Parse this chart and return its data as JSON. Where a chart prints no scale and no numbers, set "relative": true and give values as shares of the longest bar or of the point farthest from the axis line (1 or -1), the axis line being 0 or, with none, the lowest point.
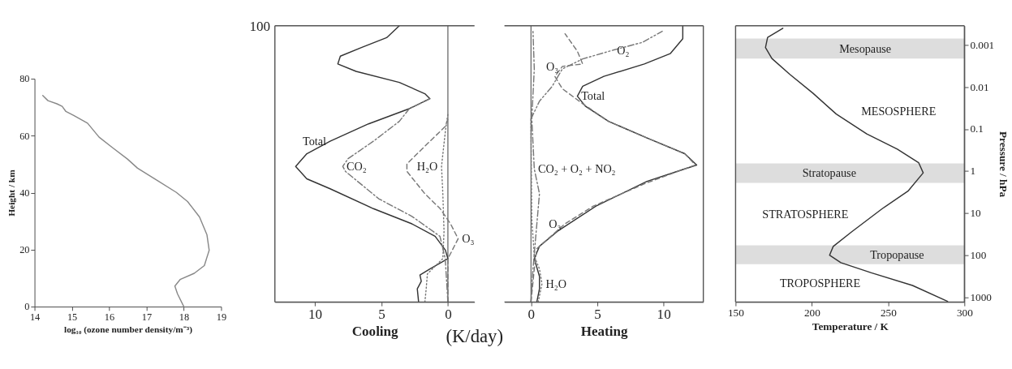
{
  "chart_data": [
    {
      "type": "line",
      "xlabel": "log₁₀ (ozone number density/m⁻³)",
      "ylabel": "Height / km",
      "xlim": [
        14,
        19
      ],
      "xticks": [
        14,
        15,
        16,
        17,
        18,
        19
      ],
      "ylim": [
        0,
        80
      ],
      "yticks": [
        0,
        20,
        40,
        60,
        80
      ],
      "series": [
        {
          "color": "#888888",
          "line_style": "solid",
          "values": [
            0,
            4.5,
            7.2,
            9.5,
            11.7,
            14.4,
            19.8,
            25.2,
            31.5,
            36.9,
            40.1,
            44.1,
            48.6,
            51.8,
            55.9,
            59.5,
            64.4,
            67.1,
            68.5,
            70.3,
            71.2,
            72.3,
            74.1
          ],
          "x": [
            18.0,
            17.83,
            17.76,
            17.9,
            18.28,
            18.55,
            18.68,
            18.62,
            18.42,
            18.1,
            17.8,
            17.31,
            16.76,
            16.49,
            16.08,
            15.73,
            15.42,
            15.05,
            14.84,
            14.74,
            14.6,
            14.36,
            14.22
          ]
        }
      ]
    },
    {
      "type": "line",
      "relative": true,
      "xlabel": "Cooling",
      "xlim": [
        13,
        -2
      ],
      "xticks": [
        10,
        5,
        0
      ],
      "ref_lines": [
        {
          "axis": "x",
          "value": 0,
          "color": "#555555"
        }
      ],
      "series": [
        {
          "color": "#333333",
          "line_style": "solid",
          "values": [
            0,
            0.048,
            0.075,
            0.098,
            0.12,
            0.157,
            0.188,
            0.238,
            0.283,
            0.338,
            0.41,
            0.446,
            0.491,
            0.537,
            0.582,
            0.645,
            0.7,
            0.736,
            0.754,
            0.795,
            0.835,
            0.862,
            0.89,
            0.921,
            0.957,
            1.0
          ],
          "x": [
            2.2,
            2.3,
            2.0,
            2.1,
            1.35,
            0,
            0.19,
            0.96,
            2.7,
            5.6,
            8.85,
            10.6,
            11.44,
            10.6,
            8.85,
            5.96,
            2.9,
            1.35,
            1.73,
            3.65,
            6.9,
            8.27,
            8.08,
            6.5,
            4.6,
            3.65
          ]
        },
        {
          "color": "#777777",
          "line_style": "dashdot",
          "values": [
            0,
            0.157,
            0.238,
            0.31,
            0.374,
            0.473,
            0.491,
            0.519,
            0.582,
            0.654,
            0.7,
            0.736
          ],
          "x": [
            0,
            0.2,
            0.6,
            2.7,
            5.2,
            7.7,
            7.9,
            7.5,
            5.6,
            3.65,
            2.9,
            1.35
          ]
        },
        {
          "color": "#777777",
          "line_style": "dashed",
          "values": [
            0,
            0.157,
            0.229,
            0.283,
            0.338,
            0.392,
            0.473,
            0.5,
            0.564,
            0.636,
            0.663
          ],
          "x": [
            0,
            0,
            -0.77,
            -0.2,
            0.58,
            1.73,
            3.08,
            3.08,
            1.73,
            0.19,
            0
          ]
        },
        {
          "color": "#777777",
          "line_style": "dotted",
          "values": [
            0,
            0.048,
            0.102,
            0.157,
            0.256,
            0.392,
            0.491,
            0.618,
            0.681
          ],
          "x": [
            1.73,
            1.63,
            1.54,
            0.38,
            0.29,
            0.38,
            0.48,
            0.19,
            0
          ]
        }
      ],
      "annotations": [
        {
          "text": "Total",
          "x": 8.85,
          "y": 0.582
        },
        {
          "text": "CO₂",
          "x": 7.9,
          "y": 0.491
        },
        {
          "text": "H₂O",
          "x": 0.48,
          "y": 0.491
        },
        {
          "text": "O₃",
          "x": -0.77,
          "y": 0.229
        },
        "100",
        "(K/day)"
      ]
    },
    {
      "type": "line",
      "relative": true,
      "xlabel": "Heating",
      "xlim": [
        -2,
        13
      ],
      "xticks": [
        0,
        5,
        10
      ],
      "ref_lines": [
        {
          "axis": "x",
          "value": 0,
          "color": "#555555"
        }
      ],
      "series": [
        {
          "color": "#333333",
          "line_style": "solid",
          "values": [
            0,
            0.048,
            0.093,
            0.157,
            0.202,
            0.256,
            0.347,
            0.437,
            0.482,
            0.496,
            0.537,
            0.591,
            0.654,
            0.709,
            0.745,
            0.781,
            0.817,
            0.862,
            0.899,
            0.953,
            1.0
          ],
          "x": [
            0.44,
            0.64,
            0.64,
            0.25,
            0.64,
            2.0,
            4.9,
            8.75,
            11.6,
            12.5,
            11.6,
            8.9,
            5.85,
            4.1,
            3.5,
            3.9,
            5.5,
            8.55,
            10.5,
            11.45,
            11.45
          ]
        },
        {
          "color": "#777777",
          "line_style": "dashed",
          "values": [
            0,
            0.12,
            0.193,
            0.283,
            0.347,
            0.428,
            0.482,
            0.496,
            0.537,
            0.591,
            0.654,
            0.718,
            0.772,
            0.817,
            0.853,
            0.862,
            0.908,
            0.971
          ],
          "x": [
            0,
            0.25,
            0.44,
            2.57,
            4.7,
            8.55,
            11.6,
            12.4,
            11.6,
            8.9,
            5.85,
            3.9,
            2.37,
            1.8,
            2.37,
            3.9,
            3.5,
            2.57
          ]
        },
        {
          "color": "#777777",
          "line_style": "dashdotdot",
          "values": [
            0.663,
            0.727,
            0.781,
            0.844,
            0.88,
            0.912,
            0.94,
            0.98
          ],
          "x": [
            0,
            0.64,
            1.6,
            2.37,
            3.9,
            6.2,
            8.4,
            9.9
          ]
        },
        {
          "color": "#777777",
          "line_style": "dashdot",
          "values": [
            0,
            0.12,
            0.392,
            0.482,
            0.663,
            0.844,
            0.98
          ],
          "x": [
            0,
            0.15,
            0.64,
            0.25,
            0.06,
            0.25,
            0.15
          ]
        },
        {
          "color": "#777777",
          "line_style": "dotted",
          "values": [
            0,
            0.066,
            0.12,
            0.166,
            0.3,
            0.66
          ],
          "x": [
            0.54,
            0.83,
            0.64,
            0.25,
            0.06,
            0
          ]
        }
      ],
      "annotations": [
        {
          "text": "O₃",
          "x": 2.37,
          "y": 0.853
        },
        {
          "text": "O₂",
          "x": 6.2,
          "y": 0.912
        },
        {
          "text": "Total",
          "x": 3.5,
          "y": 0.745
        },
        {
          "text": "CO₂ + O₂ + NO₂",
          "x": 0.25,
          "y": 0.482
        },
        {
          "text": "O₃",
          "x": 2.57,
          "y": 0.283
        },
        {
          "text": "H₂O",
          "x": 0.83,
          "y": 0.066
        }
      ]
    },
    {
      "type": "line",
      "xlabel": "Temperature / K",
      "ylabel": "Pressure / hPa",
      "log": true,
      "xlim": [
        150,
        300
      ],
      "xticks": [
        150,
        200,
        250,
        300
      ],
      "ylim": [
        1300,
        0.00035
      ],
      "yticks": [
        1000,
        100,
        10,
        1,
        0.1,
        0.01,
        0.001
      ],
      "bands": [
        {
          "axis": "y",
          "from": 0.0007,
          "to": 0.0021,
          "color": "#dddddd",
          "label": "Mesopause"
        },
        {
          "axis": "y",
          "from": 0.66,
          "to": 1.9,
          "color": "#dddddd",
          "label": "Stratopause"
        },
        {
          "axis": "y",
          "from": 58,
          "to": 163,
          "color": "#dddddd",
          "label": "Tropopause"
        }
      ],
      "series": [
        {
          "color": "#333333",
          "line_style": "solid",
          "values": [
            1250,
            525,
            263,
            151,
            100,
            62,
            28,
            7.9,
            3,
            1.1,
            0.63,
            0.3,
            0.13,
            0.044,
            0.014,
            0.005,
            0.0021,
            0.00115,
            0.00066,
            0.0004
          ],
          "x": [
            289,
            266,
            239,
            219,
            211.6,
            214,
            226,
            246,
            263,
            273,
            270,
            256,
            236,
            216,
            200.7,
            185.6,
            173.8,
            169.6,
            171,
            181
          ]
        }
      ],
      "annotations": [
        "MESOSPHERE",
        "STRATOSPHERE",
        "TROPOSPHERE"
      ]
    }
  ]
}
